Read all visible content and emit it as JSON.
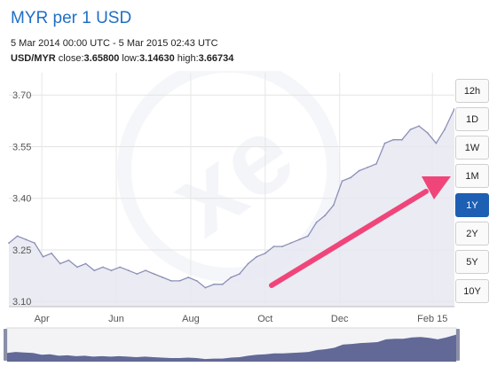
{
  "header": {
    "title": "MYR per 1 USD",
    "date_range": "5 Mar 2014 00:00 UTC - 5 Mar 2015 02:43 UTC",
    "pair": "USD/MYR",
    "close_label": "close:",
    "close_value": "3.65800",
    "low_label": "low:",
    "low_value": "3.14630",
    "high_label": "high:",
    "high_value": "3.66734"
  },
  "range_buttons": {
    "items": [
      "12h",
      "1D",
      "1W",
      "1M",
      "1Y",
      "2Y",
      "5Y",
      "10Y"
    ],
    "active": "1Y"
  },
  "colors": {
    "title": "#1f6fc5",
    "area_fill": "#e6e7f1",
    "line": "#8c90b6",
    "navigator_fill": "#626996",
    "arrow": "#f0457a",
    "active_button": "#1d5fb3"
  },
  "icons": {
    "watermark": "xe-logo-watermark",
    "arrow": "annotation-arrow-icon"
  },
  "chart_data": {
    "type": "area",
    "title": "MYR per 1 USD",
    "xlabel": "",
    "ylabel": "",
    "ylim": [
      3.085,
      3.765
    ],
    "xlim": [
      "2014-03-05",
      "2015-03-05"
    ],
    "y_ticks": [
      "3.70",
      "3.55",
      "3.40",
      "3.25",
      "3.10"
    ],
    "x_ticks": [
      "Apr",
      "Jun",
      "Aug",
      "Oct",
      "Dec",
      "Feb 15"
    ],
    "grid": true,
    "series": [
      {
        "x": [
          "2014-03-05",
          "2014-03-12",
          "2014-03-19",
          "2014-03-26",
          "2014-04-02",
          "2014-04-09",
          "2014-04-16",
          "2014-04-23",
          "2014-04-30",
          "2014-05-07",
          "2014-05-14",
          "2014-05-21",
          "2014-05-28",
          "2014-06-04",
          "2014-06-11",
          "2014-06-18",
          "2014-06-25",
          "2014-07-02",
          "2014-07-09",
          "2014-07-16",
          "2014-07-23",
          "2014-07-30",
          "2014-08-06",
          "2014-08-13",
          "2014-08-20",
          "2014-08-27",
          "2014-09-03",
          "2014-09-10",
          "2014-09-17",
          "2014-09-24",
          "2014-10-01",
          "2014-10-08",
          "2014-10-15",
          "2014-10-22",
          "2014-10-29",
          "2014-11-05",
          "2014-11-12",
          "2014-11-19",
          "2014-11-26",
          "2014-12-03",
          "2014-12-10",
          "2014-12-17",
          "2014-12-24",
          "2014-12-31",
          "2015-01-07",
          "2015-01-14",
          "2015-01-21",
          "2015-01-28",
          "2015-02-04",
          "2015-02-11",
          "2015-02-18",
          "2015-02-25",
          "2015-03-05"
        ],
        "values": [
          3.27,
          3.29,
          3.28,
          3.27,
          3.23,
          3.24,
          3.21,
          3.22,
          3.2,
          3.21,
          3.19,
          3.2,
          3.19,
          3.2,
          3.19,
          3.18,
          3.19,
          3.18,
          3.17,
          3.16,
          3.16,
          3.17,
          3.16,
          3.14,
          3.15,
          3.15,
          3.17,
          3.18,
          3.21,
          3.23,
          3.24,
          3.26,
          3.26,
          3.27,
          3.28,
          3.29,
          3.33,
          3.35,
          3.38,
          3.45,
          3.46,
          3.48,
          3.49,
          3.5,
          3.56,
          3.57,
          3.57,
          3.6,
          3.61,
          3.59,
          3.56,
          3.6,
          3.66
        ]
      }
    ]
  }
}
